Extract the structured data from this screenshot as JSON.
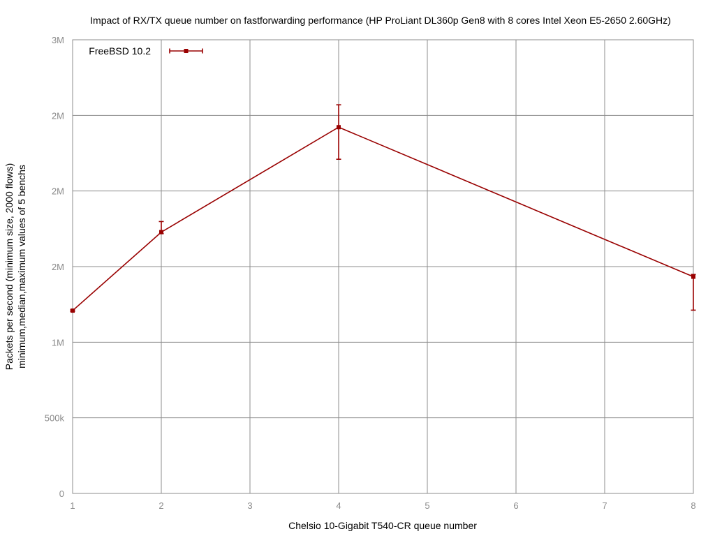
{
  "chart_data": {
    "type": "line",
    "title": "Impact of RX/TX queue number on fastforwarding performance (HP ProLiant DL360p Gen8 with 8 cores Intel Xeon E5-2650 2.60GHz)",
    "xlabel": "Chelsio 10-Gigabit T540-CR queue number",
    "ylabel_line1": "Packets per second (minimum size, 2000 flows)",
    "ylabel_line2": "minimum,median,maximum values of 5 benchs",
    "xlim": [
      1,
      8
    ],
    "ylim": [
      0,
      3000000
    ],
    "x_ticks": [
      1,
      2,
      3,
      4,
      5,
      6,
      7,
      8
    ],
    "x_tick_labels": [
      "1",
      "2",
      "3",
      "4",
      "5",
      "6",
      "7",
      "8"
    ],
    "y_ticks": [
      0,
      500000,
      1000000,
      1500000,
      2000000,
      2500000,
      3000000
    ],
    "y_tick_labels": [
      "0",
      "500k",
      "1M",
      "2M",
      "2M",
      "2M",
      "3M"
    ],
    "grid": true,
    "legend_position": "top-left",
    "series": [
      {
        "name": "FreeBSD 10.2",
        "color": "#990000",
        "x": [
          1,
          2,
          4,
          8
        ],
        "median": [
          1209000,
          1728000,
          2422000,
          1433000
        ],
        "min": [
          1204000,
          1718000,
          2210000,
          1212000
        ],
        "max": [
          1214000,
          1798000,
          2570000,
          1448000
        ]
      }
    ]
  }
}
